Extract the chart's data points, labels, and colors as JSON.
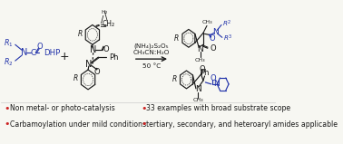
{
  "bg_color": "#f7f7f2",
  "bullet_color": "#cc2222",
  "text_color": "#222222",
  "black": "#1a1a1a",
  "blue_color": "#2233aa",
  "gray_color": "#888888",
  "bullets_left": [
    "Non metal- or photo-catalysis",
    "Carbamoylation under mild conditions"
  ],
  "bullets_right": [
    "33 examples with broad substrate scope",
    "tertiary, secondary, and heteroaryl amides applicable"
  ],
  "reagent_line1": "(NH₄)₂S₂O₅",
  "reagent_line2": "CH₃CN:H₂O",
  "reagent_line3": "50 °C",
  "fig_width": 3.78,
  "fig_height": 1.59,
  "dpi": 100
}
